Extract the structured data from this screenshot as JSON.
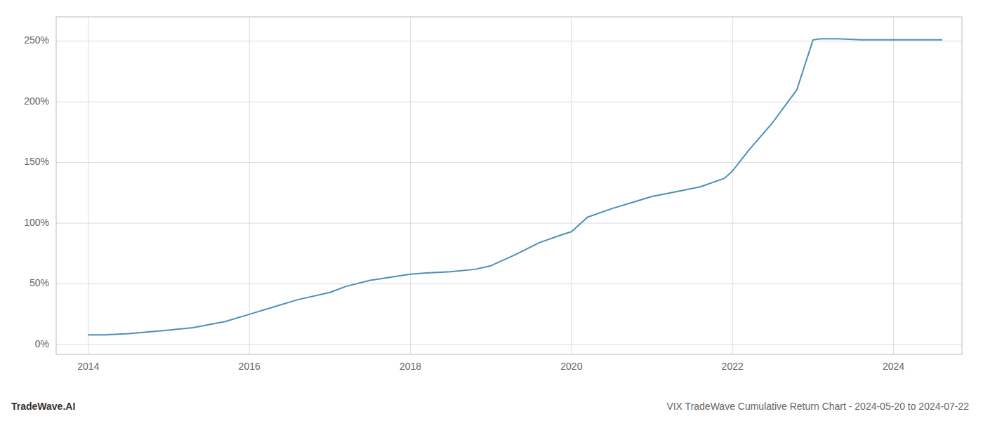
{
  "chart_data": {
    "type": "line",
    "title": "VIX TradeWave Cumulative Return Chart - 2024-05-20 to 2024-07-22",
    "annotations": [
      "TradeWave.AI"
    ],
    "color": "#4a90b8",
    "x": [
      2014.0,
      2014.2,
      2014.5,
      2015.0,
      2015.3,
      2015.7,
      2016.0,
      2016.3,
      2016.6,
      2017.0,
      2017.2,
      2017.5,
      2017.8,
      2018.0,
      2018.2,
      2018.5,
      2018.8,
      2019.0,
      2019.3,
      2019.6,
      2019.9,
      2020.0,
      2020.2,
      2020.5,
      2020.8,
      2021.0,
      2021.3,
      2021.6,
      2021.9,
      2022.0,
      2022.2,
      2022.5,
      2022.8,
      2023.0,
      2023.1,
      2023.3,
      2023.6,
      2023.9,
      2024.0,
      2024.3,
      2024.6
    ],
    "values": [
      8,
      8,
      9,
      12,
      14,
      19,
      25,
      31,
      37,
      43,
      48,
      53,
      56,
      58,
      59,
      60,
      62,
      65,
      74,
      84,
      91,
      93,
      105,
      112,
      118,
      122,
      126,
      130,
      137,
      143,
      160,
      183,
      210,
      251,
      252,
      252,
      251,
      251,
      251,
      251,
      251
    ],
    "xlim": [
      2013.6,
      2024.85
    ],
    "ylim": [
      -8,
      270
    ],
    "xticks": [
      2014,
      2016,
      2018,
      2020,
      2022,
      2024
    ],
    "yticks": [
      {
        "value": 0,
        "label": "0%"
      },
      {
        "value": 50,
        "label": "50%"
      },
      {
        "value": 100,
        "label": "100%"
      },
      {
        "value": 150,
        "label": "150%"
      },
      {
        "value": 200,
        "label": "200%"
      },
      {
        "value": 250,
        "label": "250%"
      }
    ],
    "grid": true
  }
}
